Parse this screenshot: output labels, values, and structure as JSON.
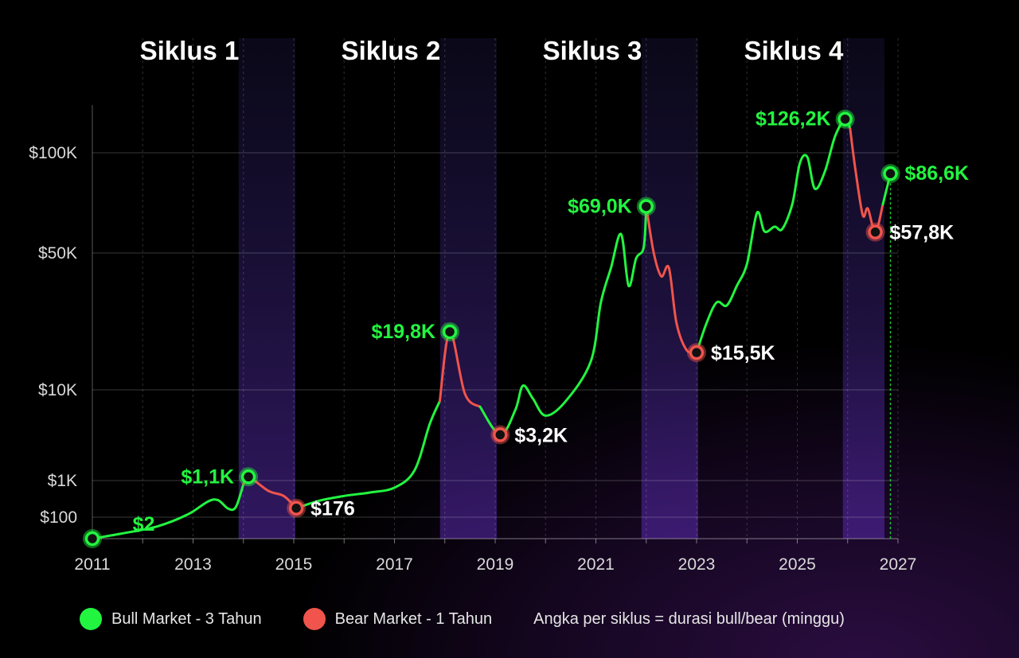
{
  "chart_data": {
    "type": "line",
    "y_scale": "log",
    "x_ticks": [
      "2011",
      "2013",
      "2015",
      "2017",
      "2019",
      "2021",
      "2023",
      "2025",
      "2027"
    ],
    "y_ticks": [
      "$100",
      "$1K",
      "$10K",
      "$50K",
      "$100K"
    ],
    "cycles": [
      {
        "label": "Siklus 1",
        "bear_start": 2014.0,
        "bear_end": 2015.0
      },
      {
        "label": "Siklus 2",
        "bear_start": 2018.0,
        "bear_end": 2019.0
      },
      {
        "label": "Siklus 3",
        "bear_start": 2022.0,
        "bear_end": 2023.0
      },
      {
        "label": "Siklus 4",
        "bear_start": 2026.0,
        "bear_end": 2026.7
      }
    ],
    "price_path": [
      [
        2011.0,
        40
      ],
      [
        2011.6,
        50
      ],
      [
        2012.3,
        68
      ],
      [
        2012.9,
        120
      ],
      [
        2013.3,
        270
      ],
      [
        2013.5,
        290
      ],
      [
        2013.7,
        170
      ],
      [
        2013.85,
        190
      ],
      [
        2014.0,
        800
      ],
      [
        2014.1,
        1100
      ],
      [
        2014.5,
        520
      ],
      [
        2014.8,
        380
      ],
      [
        2015.05,
        176
      ],
      [
        2015.5,
        280
      ],
      [
        2016.0,
        380
      ],
      [
        2016.5,
        470
      ],
      [
        2017.0,
        640
      ],
      [
        2017.4,
        1300
      ],
      [
        2017.7,
        4200
      ],
      [
        2017.9,
        7500
      ],
      [
        2018.1,
        19800
      ],
      [
        2018.4,
        9000
      ],
      [
        2018.7,
        6500
      ],
      [
        2019.1,
        3200
      ],
      [
        2019.4,
        6000
      ],
      [
        2019.55,
        10500
      ],
      [
        2019.75,
        8000
      ],
      [
        2020.0,
        5200
      ],
      [
        2020.4,
        7500
      ],
      [
        2020.9,
        14000
      ],
      [
        2021.1,
        28000
      ],
      [
        2021.3,
        42000
      ],
      [
        2021.5,
        57000
      ],
      [
        2021.65,
        34000
      ],
      [
        2021.8,
        47000
      ],
      [
        2021.95,
        52000
      ],
      [
        2022.0,
        69000
      ],
      [
        2022.15,
        50000
      ],
      [
        2022.3,
        38000
      ],
      [
        2022.45,
        42000
      ],
      [
        2022.6,
        22000
      ],
      [
        2022.8,
        16000
      ],
      [
        2023.0,
        15500
      ],
      [
        2023.2,
        22000
      ],
      [
        2023.4,
        28000
      ],
      [
        2023.6,
        27000
      ],
      [
        2023.8,
        34000
      ],
      [
        2024.0,
        44000
      ],
      [
        2024.2,
        66000
      ],
      [
        2024.35,
        58000
      ],
      [
        2024.55,
        60000
      ],
      [
        2024.7,
        59000
      ],
      [
        2024.9,
        70000
      ],
      [
        2025.05,
        93000
      ],
      [
        2025.2,
        97000
      ],
      [
        2025.35,
        78000
      ],
      [
        2025.55,
        88000
      ],
      [
        2025.75,
        112000
      ],
      [
        2025.95,
        126200
      ],
      [
        2026.05,
        118000
      ],
      [
        2026.15,
        90000
      ],
      [
        2026.3,
        65000
      ],
      [
        2026.4,
        68000
      ],
      [
        2026.55,
        57800
      ],
      [
        2026.7,
        70000
      ],
      [
        2026.85,
        86600
      ]
    ],
    "markers": [
      {
        "x": 2011.0,
        "y": 40,
        "type": "bull",
        "label": ""
      },
      {
        "x": 2014.1,
        "y": 1100,
        "type": "bull",
        "label": "$1,1K"
      },
      {
        "x": 2015.05,
        "y": 176,
        "type": "bear",
        "label": "$176"
      },
      {
        "x": 2018.1,
        "y": 19800,
        "type": "bull",
        "label": "$19,8K"
      },
      {
        "x": 2019.1,
        "y": 3200,
        "type": "bear",
        "label": "$3,2K"
      },
      {
        "x": 2022.0,
        "y": 69000,
        "type": "bull",
        "label": "$69,0K"
      },
      {
        "x": 2023.0,
        "y": 15500,
        "type": "bear",
        "label": "$15,5K"
      },
      {
        "x": 2025.95,
        "y": 126200,
        "type": "bull",
        "label": "$126,2K"
      },
      {
        "x": 2026.55,
        "y": 57800,
        "type": "bear",
        "label": "$57,8K"
      },
      {
        "x": 2026.85,
        "y": 86600,
        "type": "current",
        "label": "$86,6K"
      }
    ],
    "annotations": [
      {
        "x": 2011.8,
        "y": 60,
        "label": "$2"
      }
    ]
  },
  "legend": {
    "bull": "Bull Market - 3 Tahun",
    "bear": "Bear Market - 1 Tahun",
    "note": "Angka per siklus = durasi bull/bear (minggu)"
  },
  "colors": {
    "bull": "#22f540",
    "bear": "#f0544c",
    "band": "#3a1f78"
  }
}
